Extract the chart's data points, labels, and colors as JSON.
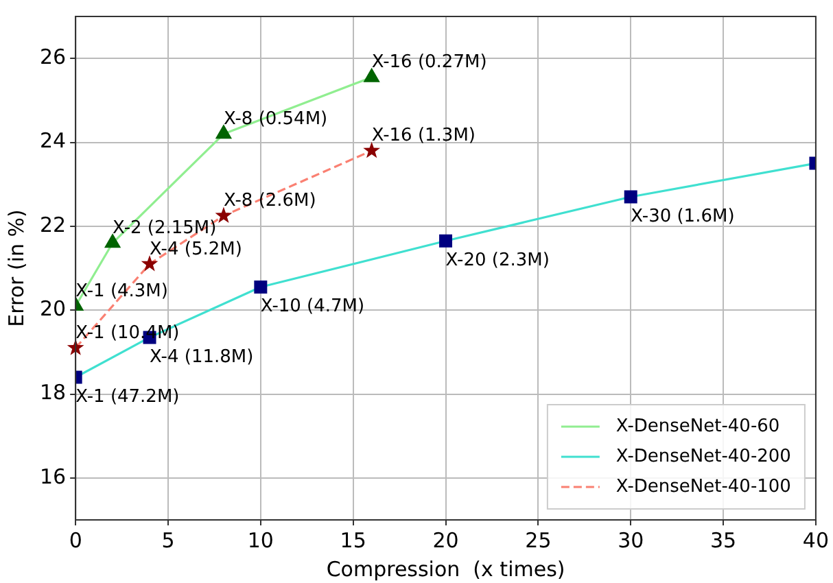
{
  "chart_data": {
    "type": "line",
    "xlabel": "Compression  (x times)",
    "ylabel": "Error (in %)",
    "xlim": [
      0,
      40
    ],
    "xticks": [
      0,
      5,
      10,
      15,
      20,
      25,
      30,
      35,
      40
    ],
    "ylim": [
      15,
      27
    ],
    "yticks": [
      16,
      18,
      20,
      22,
      24,
      26
    ],
    "grid": true,
    "legend": "bottom right",
    "series": [
      {
        "name": "X-DenseNet-40-60",
        "color": "#90ee90",
        "colors": [
          "#006400",
          "#006400",
          "#006400",
          "#006400"
        ],
        "marker": "triangle",
        "line_style": "solid",
        "x": [
          0,
          2,
          8,
          16
        ],
        "values": [
          20.1,
          21.6,
          24.2,
          25.55
        ],
        "value_labels": [
          "X-1 (4.3M)",
          "X-2 (2.15M)",
          "X-8 (0.54M)",
          "X-16 (0.27M)"
        ]
      },
      {
        "name": "X-DenseNet-40-200",
        "color": "#40e0d0",
        "colors": [
          "#000080",
          "#000080",
          "#000080",
          "#000080",
          "#000080",
          "#000080"
        ],
        "marker": "square",
        "line_style": "solid",
        "x": [
          0,
          4,
          10,
          20,
          30,
          40
        ],
        "values": [
          18.4,
          19.35,
          20.55,
          21.65,
          22.7,
          23.5
        ],
        "value_labels": [
          "X-1 (47.2M)",
          "X-4 (11.8M)",
          "X-10 (4.7M)",
          "X-20 (2.3M)",
          "X-30 (1.6M)",
          null
        ]
      },
      {
        "name": "X-DenseNet-40-100",
        "color": "#fa8072",
        "colors": [
          "#8b0000",
          "#8b0000",
          "#8b0000",
          "#8b0000"
        ],
        "marker": "star",
        "line_style": "dashed",
        "x": [
          0,
          4,
          8,
          16
        ],
        "values": [
          19.1,
          21.1,
          22.25,
          23.8
        ],
        "value_labels": [
          "X-1 (10.4M)",
          "X-4 (5.2M)",
          "X-8 (2.6M)",
          "X-16 (1.3M)"
        ]
      }
    ]
  }
}
